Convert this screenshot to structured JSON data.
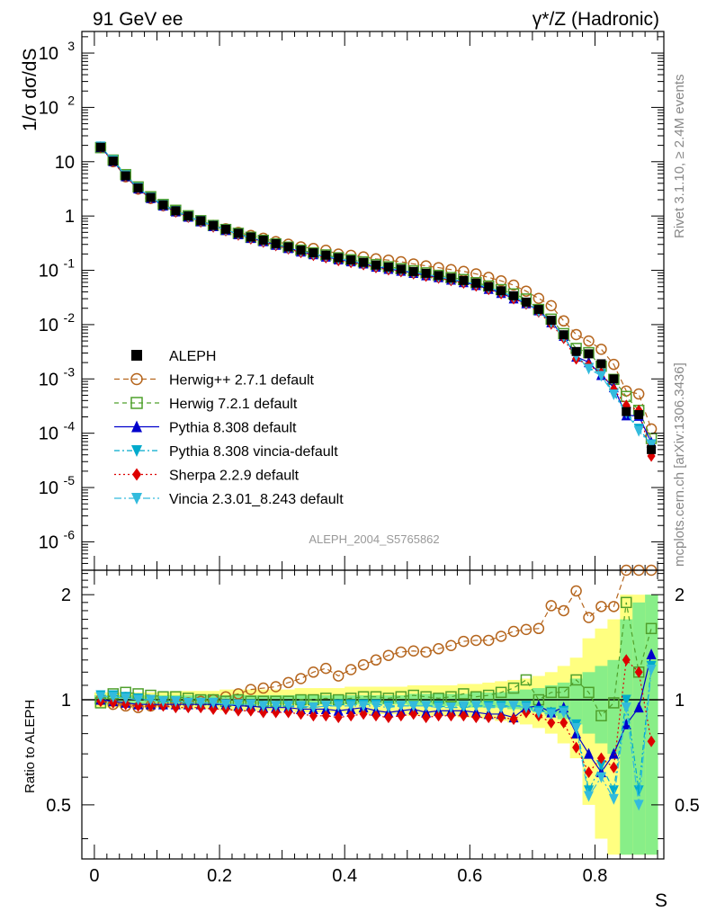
{
  "header": {
    "left_title": "91 GeV ee",
    "right_title": "γ*/Z (Hadronic)"
  },
  "side": {
    "rivet": "Rivet 3.1.10, ≥ 2.4M events",
    "mcplots": "mcplots.cern.ch [arXiv:1306.3436]"
  },
  "chart_data": [
    {
      "type": "line",
      "title": "",
      "xlabel": "S",
      "ylabel": "1/σ  dσ/dS",
      "yscale": "log",
      "xlim": [
        -0.02,
        0.91
      ],
      "ylim": [
        3e-07,
        2500
      ],
      "yticks": [
        "10^-6",
        "10^-5",
        "10^-4",
        "10^-3",
        "10^-2",
        "10^-1",
        "1",
        "10",
        "10^2",
        "10^3"
      ],
      "watermark": "ALEPH_2004_S5765862",
      "legend_position": "bottom-left",
      "x": [
        0.01,
        0.03,
        0.05,
        0.07,
        0.09,
        0.11,
        0.13,
        0.15,
        0.17,
        0.19,
        0.21,
        0.23,
        0.25,
        0.27,
        0.29,
        0.31,
        0.33,
        0.35,
        0.37,
        0.39,
        0.41,
        0.43,
        0.45,
        0.47,
        0.49,
        0.51,
        0.53,
        0.55,
        0.57,
        0.59,
        0.61,
        0.63,
        0.65,
        0.67,
        0.69,
        0.71,
        0.73,
        0.75,
        0.77,
        0.79,
        0.81,
        0.83,
        0.85,
        0.87,
        0.89
      ],
      "series": [
        {
          "name": "ALEPH",
          "color": "#000000",
          "marker": "square",
          "values": [
            18.5,
            10.3,
            5.5,
            3.3,
            2.2,
            1.6,
            1.25,
            1.0,
            0.82,
            0.67,
            0.57,
            0.48,
            0.41,
            0.36,
            0.31,
            0.27,
            0.235,
            0.21,
            0.19,
            0.17,
            0.155,
            0.14,
            0.125,
            0.115,
            0.105,
            0.095,
            0.088,
            0.08,
            0.072,
            0.065,
            0.058,
            0.05,
            0.042,
            0.034,
            0.026,
            0.019,
            0.012,
            0.0065,
            0.0032,
            0.0029,
            0.0019,
            0.001,
            0.00025,
            0.00022,
            5e-05
          ]
        },
        {
          "name": "Herwig++ 2.7.1 default",
          "color": "#b5651d",
          "marker": "circle-open",
          "dash": "6,4",
          "ratio": [
            1.0,
            0.97,
            0.96,
            0.95,
            0.96,
            0.97,
            0.98,
            0.98,
            0.99,
            1.0,
            1.02,
            1.04,
            1.07,
            1.08,
            1.09,
            1.12,
            1.15,
            1.2,
            1.23,
            1.17,
            1.22,
            1.26,
            1.3,
            1.34,
            1.37,
            1.38,
            1.37,
            1.4,
            1.43,
            1.47,
            1.48,
            1.48,
            1.52,
            1.57,
            1.59,
            1.6,
            1.86,
            1.8,
            2.05,
            1.72,
            1.85,
            1.85,
            2.4,
            2.4,
            2.4
          ]
        },
        {
          "name": "Herwig 7.2.1 default",
          "color": "#4fa02c",
          "marker": "square-open",
          "dash": "5,4",
          "ratio": [
            0.98,
            1.04,
            1.05,
            1.04,
            1.03,
            1.02,
            1.02,
            1.01,
            1.0,
            1.0,
            0.99,
            1.0,
            0.99,
            0.99,
            0.99,
            0.99,
            1.0,
            1.0,
            1.01,
            1.0,
            1.01,
            1.02,
            1.02,
            1.01,
            1.02,
            1.03,
            1.02,
            1.01,
            1.02,
            1.04,
            1.02,
            1.03,
            1.05,
            1.08,
            1.14,
            1.0,
            1.05,
            1.05,
            1.14,
            1.05,
            0.9,
            0.98,
            1.9,
            1.2,
            1.6
          ]
        },
        {
          "name": "Pythia 8.308 default",
          "color": "#0000cc",
          "marker": "triangle-up",
          "dash": "",
          "ratio": [
            1.0,
            0.99,
            0.98,
            0.97,
            0.97,
            0.97,
            0.97,
            0.97,
            0.97,
            0.97,
            0.97,
            0.96,
            0.96,
            0.95,
            0.95,
            0.95,
            0.94,
            0.94,
            0.94,
            0.93,
            0.94,
            0.95,
            0.93,
            0.92,
            0.93,
            0.94,
            0.92,
            0.93,
            0.93,
            0.93,
            0.92,
            0.91,
            0.91,
            0.89,
            0.95,
            0.96,
            0.92,
            0.95,
            0.8,
            0.7,
            0.62,
            0.7,
            0.85,
            0.95,
            1.35
          ]
        },
        {
          "name": "Pythia 8.308 vincia-default",
          "color": "#00aacc",
          "marker": "triangle-down",
          "dash": "6,3,2,3",
          "ratio": [
            1.03,
            1.03,
            1.02,
            1.01,
            1.0,
            0.99,
            0.99,
            0.98,
            0.98,
            0.98,
            0.97,
            0.97,
            0.97,
            0.96,
            0.96,
            0.96,
            0.95,
            0.95,
            0.96,
            0.97,
            0.97,
            0.97,
            0.97,
            0.96,
            0.96,
            0.96,
            0.96,
            0.96,
            0.95,
            0.95,
            0.96,
            0.96,
            0.96,
            0.96,
            0.96,
            0.93,
            0.92,
            0.93,
            0.85,
            0.55,
            0.65,
            0.55,
            1.0,
            0.55,
            1.25
          ]
        },
        {
          "name": "Sherpa 2.2.9 default",
          "color": "#dd0000",
          "marker": "diamond",
          "dash": "2,3",
          "ratio": [
            0.99,
            0.98,
            0.97,
            0.96,
            0.96,
            0.96,
            0.95,
            0.95,
            0.95,
            0.94,
            0.94,
            0.93,
            0.93,
            0.92,
            0.92,
            0.92,
            0.91,
            0.9,
            0.9,
            0.89,
            0.9,
            0.91,
            0.9,
            0.89,
            0.9,
            0.91,
            0.89,
            0.9,
            0.9,
            0.9,
            0.89,
            0.89,
            0.89,
            0.88,
            0.92,
            0.9,
            0.86,
            0.86,
            0.73,
            0.62,
            0.68,
            0.64,
            1.3,
            1.2,
            0.76
          ]
        },
        {
          "name": "Vincia 2.3.01_8.243 default",
          "color": "#33bbdd",
          "marker": "triangle-down",
          "dash": "8,3,2,3",
          "ratio": [
            1.02,
            1.02,
            1.01,
            1.0,
            1.0,
            0.99,
            0.99,
            0.98,
            0.98,
            0.98,
            0.97,
            0.97,
            0.97,
            0.96,
            0.96,
            0.96,
            0.96,
            0.95,
            0.96,
            0.96,
            0.96,
            0.96,
            0.96,
            0.95,
            0.96,
            0.96,
            0.96,
            0.95,
            0.95,
            0.96,
            0.96,
            0.95,
            0.95,
            0.96,
            0.95,
            0.92,
            0.91,
            0.92,
            0.83,
            0.53,
            0.6,
            0.52,
            0.95,
            0.5,
            1.22
          ]
        }
      ]
    },
    {
      "type": "line",
      "ylabel": "Ratio to ALEPH",
      "xlabel": "S",
      "ylim": [
        0.35,
        2.35
      ],
      "xticks": [
        "0",
        "0.2",
        "0.4",
        "0.6",
        "0.8"
      ],
      "yticks": [
        "0.5",
        "1",
        "2"
      ],
      "band_inner": [
        0.03,
        0.03,
        0.03,
        0.03,
        0.03,
        0.03,
        0.03,
        0.03,
        0.03,
        0.03,
        0.03,
        0.03,
        0.03,
        0.03,
        0.03,
        0.03,
        0.03,
        0.03,
        0.03,
        0.03,
        0.03,
        0.03,
        0.03,
        0.03,
        0.03,
        0.04,
        0.04,
        0.04,
        0.04,
        0.04,
        0.05,
        0.05,
        0.05,
        0.06,
        0.07,
        0.08,
        0.1,
        0.12,
        0.15,
        0.2,
        0.25,
        0.3,
        0.7,
        0.9,
        1.0
      ],
      "band_outer": [
        0.05,
        0.05,
        0.05,
        0.05,
        0.05,
        0.05,
        0.06,
        0.06,
        0.06,
        0.06,
        0.07,
        0.07,
        0.07,
        0.07,
        0.07,
        0.07,
        0.08,
        0.08,
        0.08,
        0.08,
        0.09,
        0.09,
        0.09,
        0.09,
        0.09,
        0.1,
        0.1,
        0.1,
        0.1,
        0.11,
        0.11,
        0.12,
        0.13,
        0.14,
        0.15,
        0.17,
        0.2,
        0.25,
        0.32,
        0.5,
        0.6,
        0.7,
        1.0,
        1.0,
        1.0
      ]
    }
  ]
}
